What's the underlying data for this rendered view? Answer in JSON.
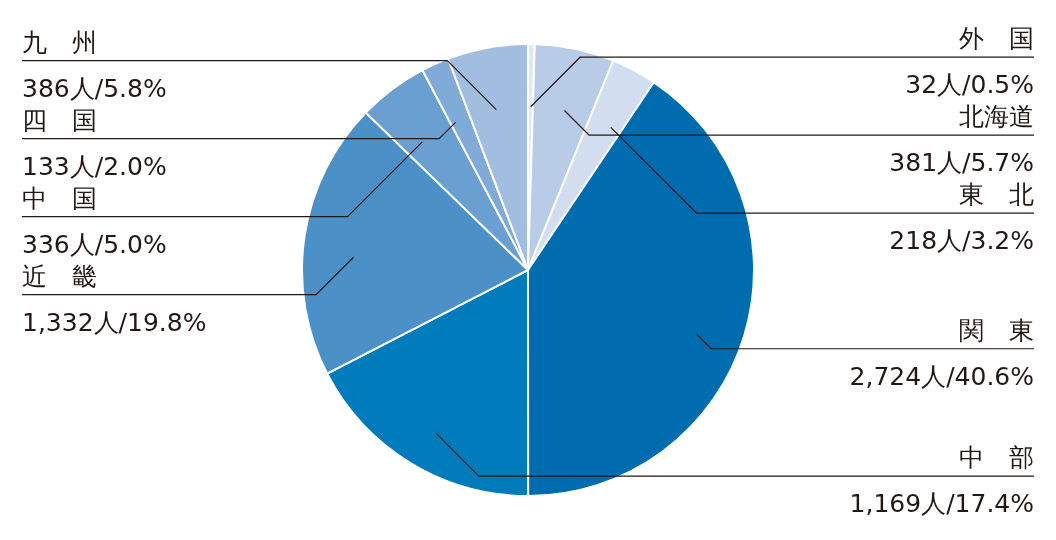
{
  "chart_data": {
    "type": "pie",
    "categories": [
      "外　国",
      "北海道",
      "東　北",
      "関　東",
      "中　部",
      "近　畿",
      "中　国",
      "四　国",
      "九　州"
    ],
    "values": [
      32,
      381,
      218,
      2724,
      1169,
      1332,
      336,
      133,
      386
    ],
    "value_labels": [
      "32人/0.5%",
      "381人/5.7%",
      "218人/3.2%",
      "2,724人/40.6%",
      "1,169人/17.4%",
      "1,332人/19.8%",
      "336人/5.0%",
      "133人/2.0%",
      "386人/5.8%"
    ],
    "colors": [
      "#dfe8f4",
      "#b8cce8",
      "#d2ddef",
      "#006cb0",
      "#007cbc",
      "#4b91c8",
      "#6a9fd1",
      "#80abd8",
      "#a1bee1"
    ]
  }
}
